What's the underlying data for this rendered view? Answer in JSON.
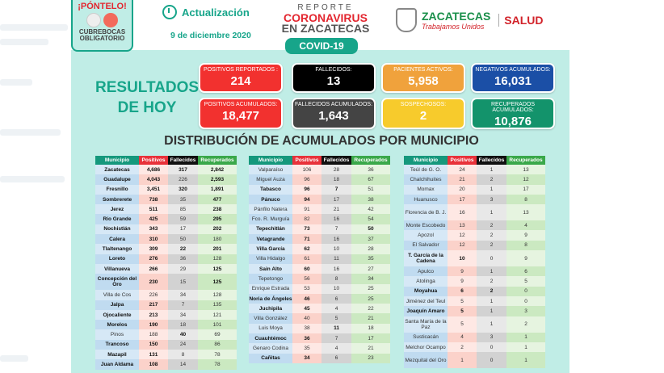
{
  "badge": {
    "title": "¡PÓNTELO!",
    "line1": "CUBREBOCAS",
    "line2": "OBLIGATORIO"
  },
  "update": {
    "label": "Actualización",
    "date": "9 de diciembre 2020"
  },
  "report": {
    "line1": "REPORTE",
    "line2": "CORONAVIRUS",
    "line3": "EN ZACATECAS",
    "tag": "COVID-19"
  },
  "gov": {
    "name": "ZACATECAS",
    "slogan": "Trabajamos Unidos",
    "dept": "SALUD"
  },
  "results": {
    "line1": "RESULTADOS",
    "line2": "DE HOY"
  },
  "cards": [
    {
      "label": "POSITIVOS REPORTADOS :",
      "value": "214",
      "color": "#f2312f"
    },
    {
      "label": "FALLECIDOS:",
      "value": "13",
      "color": "#000000"
    },
    {
      "label": "PACIENTES ACTIVOS:",
      "value": "5,958",
      "color": "#f0a23c"
    },
    {
      "label": "NEGATIVOS ACUMULADOS:",
      "value": "16,031",
      "color": "#1b4fa6"
    },
    {
      "label": "POSITIVOS ACUMULADOS:",
      "value": "18,477",
      "color": "#f2312f"
    },
    {
      "label": "FALLECIDOS ACUMULADOS:",
      "value": "1,643",
      "color": "#444444"
    },
    {
      "label": "SOSPECHOSOS:",
      "value": "2",
      "color": "#f7cb2c"
    },
    {
      "label": "RECUPERADOS ACUMULADOS:",
      "value": "10,876",
      "color": "#13936b"
    }
  ],
  "distribution_title": "DISTRIBUCIÓN DE ACUMULADOS POR MUNICIPIO",
  "columns": [
    "Municipio",
    "Positivos",
    "Fallecidos",
    "Recuperados"
  ],
  "tables": [
    [
      [
        "Zacatecas",
        "4,686",
        "317",
        "2,842",
        "1111"
      ],
      [
        "Guadalupe",
        "4,043",
        "226",
        "2,593",
        "1101"
      ],
      [
        "Fresnillo",
        "3,451",
        "320",
        "1,891",
        "1111"
      ],
      [
        "Sombrerete",
        "738",
        "35",
        "477",
        "1101"
      ],
      [
        "Jerez",
        "511",
        "85",
        "238",
        "1101"
      ],
      [
        "Río Grande",
        "425",
        "59",
        "295",
        "1101"
      ],
      [
        "Nochistlán",
        "343",
        "17",
        "202",
        "1101"
      ],
      [
        "Calera",
        "310",
        "50",
        "180",
        "1100"
      ],
      [
        "Tlaltenango",
        "309",
        "22",
        "201",
        "1111"
      ],
      [
        "Loreto",
        "276",
        "36",
        "128",
        "1100"
      ],
      [
        "Villanueva",
        "266",
        "29",
        "125",
        "1101"
      ],
      [
        "Concepción del Oro",
        "230",
        "15",
        "125",
        "1101"
      ],
      [
        "Villa de Cos",
        "226",
        "34",
        "128",
        "0000"
      ],
      [
        "Jalpa",
        "217",
        "7",
        "135",
        "1100"
      ],
      [
        "Ojocaliente",
        "213",
        "34",
        "121",
        "1100"
      ],
      [
        "Morelos",
        "190",
        "18",
        "101",
        "1100"
      ],
      [
        "Pinos",
        "188",
        "40",
        "69",
        "0010"
      ],
      [
        "Trancoso",
        "150",
        "24",
        "86",
        "1100"
      ],
      [
        "Mazapil",
        "131",
        "8",
        "78",
        "1100"
      ],
      [
        "Juan Aldama",
        "108",
        "14",
        "78",
        "1100"
      ]
    ],
    [
      [
        "Valparaíso",
        "106",
        "28",
        "36",
        "0000"
      ],
      [
        "Miguel Auza",
        "96",
        "18",
        "67",
        "0000"
      ],
      [
        "Tabasco",
        "96",
        "7",
        "51",
        "1110"
      ],
      [
        "Pánuco",
        "94",
        "17",
        "38",
        "1100"
      ],
      [
        "Pánfilo Natera",
        "91",
        "21",
        "42",
        "0000"
      ],
      [
        "Fco. R. Murguía",
        "82",
        "16",
        "54",
        "0000"
      ],
      [
        "Tepechitlán",
        "73",
        "7",
        "50",
        "1101"
      ],
      [
        "Vetagrande",
        "71",
        "16",
        "37",
        "1100"
      ],
      [
        "Villa García",
        "62",
        "10",
        "28",
        "1100"
      ],
      [
        "Villa Hidalgo",
        "61",
        "11",
        "35",
        "0000"
      ],
      [
        "Sain Alto",
        "60",
        "16",
        "27",
        "1100"
      ],
      [
        "Tepetongo",
        "56",
        "8",
        "34",
        "0000"
      ],
      [
        "Enrique Estrada",
        "53",
        "10",
        "25",
        "0000"
      ],
      [
        "Noria de Ángeles",
        "46",
        "6",
        "25",
        "1100"
      ],
      [
        "Juchipila",
        "45",
        "4",
        "22",
        "1100"
      ],
      [
        "Villa González",
        "40",
        "5",
        "21",
        "0000"
      ],
      [
        "Luis Moya",
        "38",
        "11",
        "18",
        "0010"
      ],
      [
        "Cuauhtémoc",
        "36",
        "7",
        "17",
        "1100"
      ],
      [
        "Genaro Codina",
        "35",
        "4",
        "21",
        "0000"
      ],
      [
        "Cañitas",
        "34",
        "6",
        "23",
        "1100"
      ]
    ],
    [
      [
        "Teúl de G. O.",
        "24",
        "1",
        "13",
        "0000"
      ],
      [
        "Chalchihuites",
        "21",
        "2",
        "12",
        "0000"
      ],
      [
        "Momax",
        "20",
        "1",
        "17",
        "0000"
      ],
      [
        "Huanusco",
        "17",
        "3",
        "8",
        "0000"
      ],
      [
        "Florencia de B. J.",
        "16",
        "1",
        "13",
        "0000"
      ],
      [
        "Monte Escobedo",
        "13",
        "2",
        "4",
        "0000"
      ],
      [
        "Apozol",
        "12",
        "2",
        "9",
        "0000"
      ],
      [
        "El Salvador",
        "12",
        "2",
        "8",
        "0000"
      ],
      [
        "T. García de la Cadena",
        "10",
        "0",
        "9",
        "1100"
      ],
      [
        "Apulco",
        "9",
        "1",
        "6",
        "0000"
      ],
      [
        "Atolinga",
        "9",
        "2",
        "5",
        "0000"
      ],
      [
        "Moyahua",
        "6",
        "2",
        "0",
        "1110"
      ],
      [
        "Jiménez del Teul",
        "5",
        "1",
        "0",
        "0000"
      ],
      [
        "Joaquín Amaro",
        "5",
        "1",
        "3",
        "1100"
      ],
      [
        "Santa María de la Paz",
        "5",
        "1",
        "2",
        "0000"
      ],
      [
        "Susticacán",
        "4",
        "3",
        "1",
        "0000"
      ],
      [
        "Melchor Ocampo",
        "2",
        "0",
        "1",
        "0000"
      ],
      [
        "Mezquital del Oro",
        "1",
        "0",
        "1",
        "0000"
      ]
    ]
  ]
}
